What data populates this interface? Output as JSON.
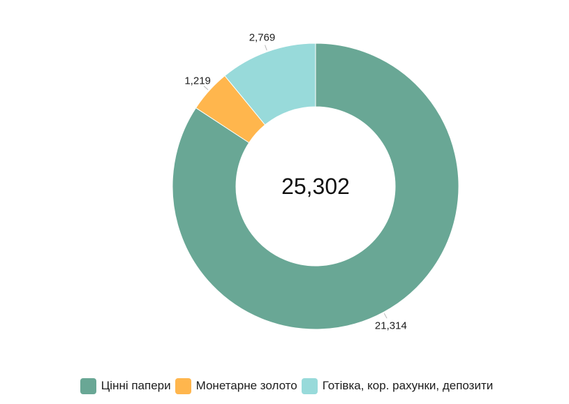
{
  "chart_data": {
    "type": "pie",
    "variant": "donut",
    "title": "",
    "center_label": "25,302",
    "labels": [
      "Цінні папери",
      "Монетарне золото",
      "Готівка, кор. рахунки, депозити"
    ],
    "values": [
      21314,
      1219,
      2769
    ],
    "value_labels": [
      "21,314",
      "1,219",
      "2,769"
    ],
    "colors": [
      "#69a795",
      "#ffb64d",
      "#98dada"
    ],
    "legend_position": "bottom"
  }
}
